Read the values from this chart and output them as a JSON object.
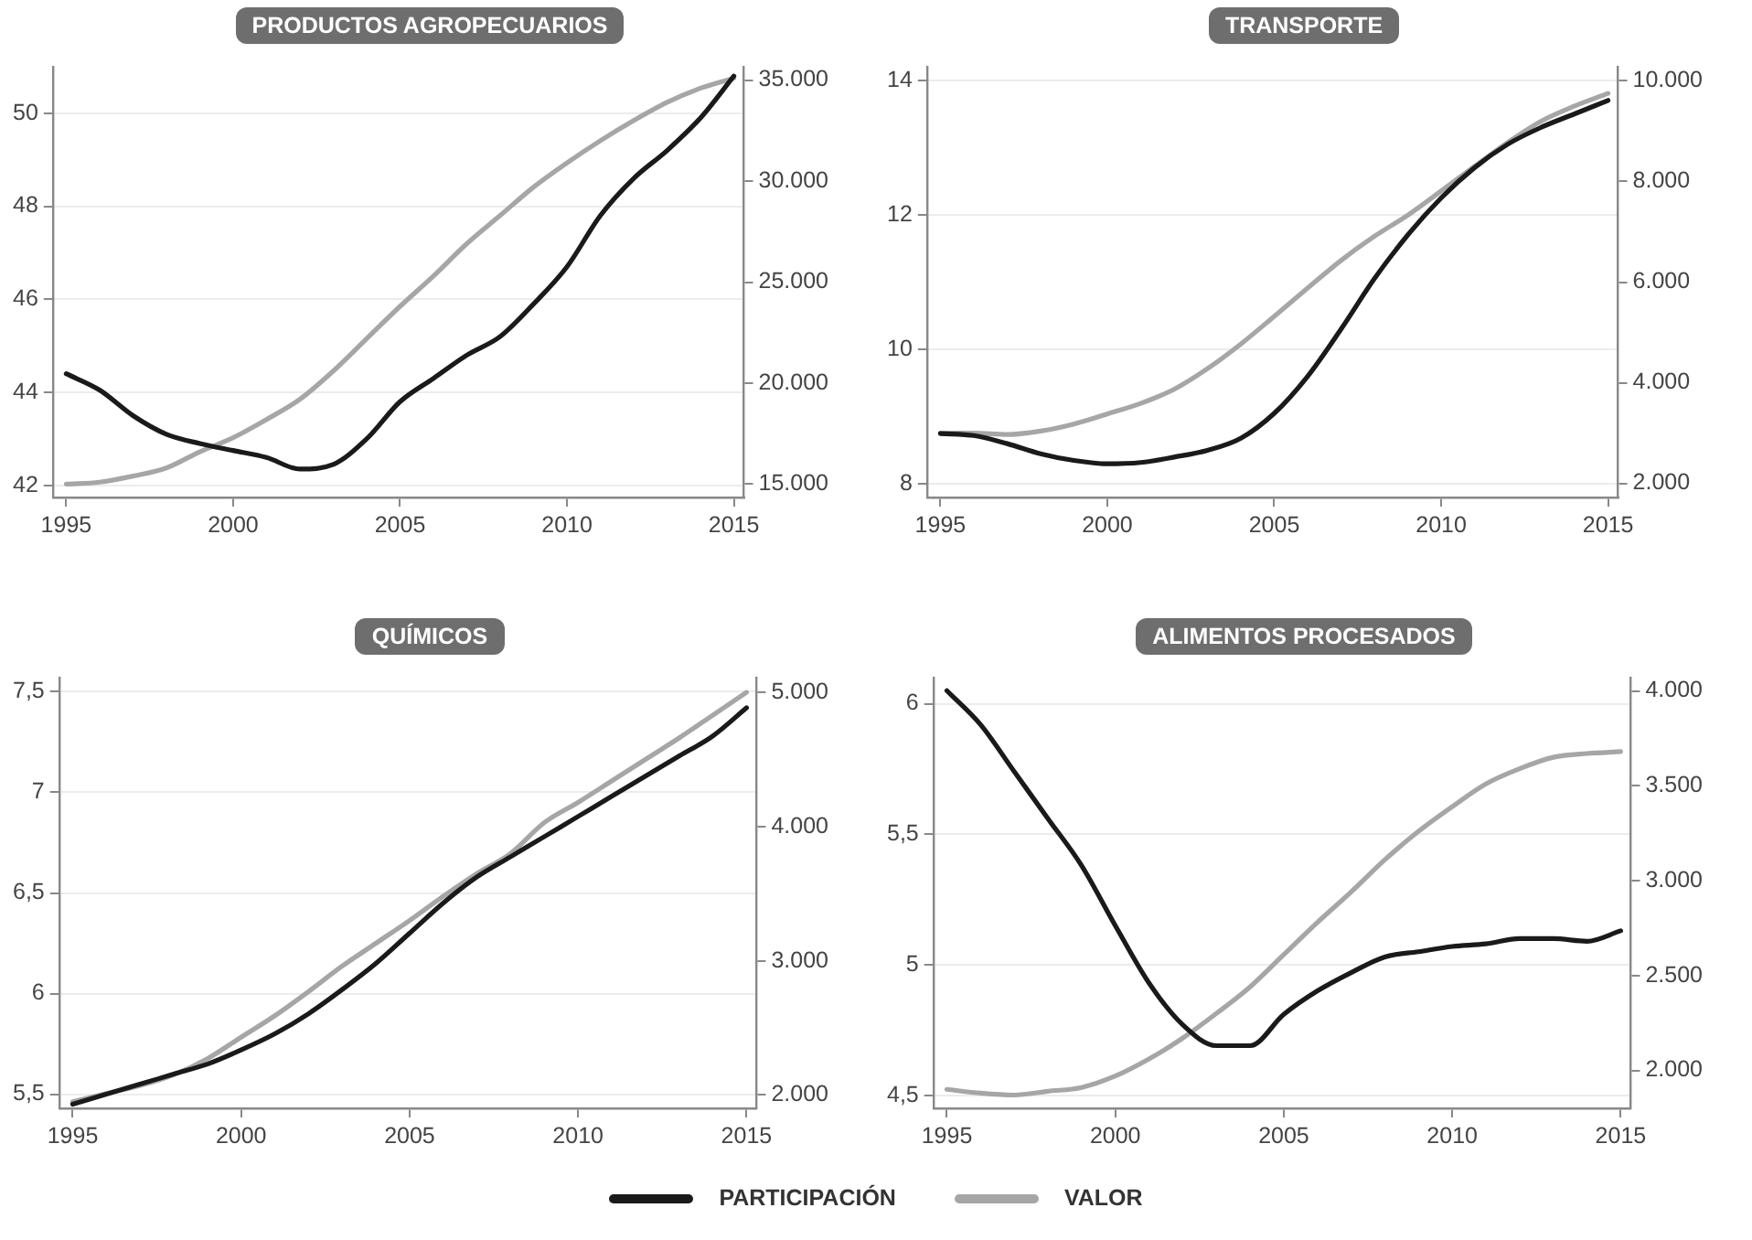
{
  "chart_data": [
    {
      "type": "line",
      "title": "PRODUCTOS AGROPECUARIOS",
      "x": [
        1995,
        1996,
        1997,
        1998,
        1999,
        2000,
        2001,
        2002,
        2003,
        2004,
        2005,
        2006,
        2007,
        2008,
        2009,
        2010,
        2011,
        2012,
        2013,
        2014,
        2015
      ],
      "xlim": [
        1994.6,
        2015.3
      ],
      "xticks": [
        1995,
        2000,
        2005,
        2010,
        2015
      ],
      "ylim": [
        41.74,
        51.0
      ],
      "yticks": [
        42,
        44,
        46,
        48,
        50
      ],
      "y2lim": [
        14340,
        35660
      ],
      "y2ticks": [
        {
          "value": 15000,
          "label": "15.000"
        },
        {
          "value": 20000,
          "label": "20.000"
        },
        {
          "value": 25000,
          "label": "25.000"
        },
        {
          "value": 30000,
          "label": "30.000"
        },
        {
          "value": 35000,
          "label": "35.000"
        }
      ],
      "grid": "y",
      "legend": "bottom",
      "series": [
        {
          "name": "PARTICIPACIÓN",
          "color": "#1a1a1a",
          "values": [
            44.4,
            44.05,
            43.5,
            43.1,
            42.9,
            42.75,
            42.6,
            42.35,
            42.45,
            43.0,
            43.8,
            44.3,
            44.8,
            45.2,
            45.9,
            46.7,
            47.8,
            48.6,
            49.2,
            49.9,
            50.8
          ]
        },
        {
          "name": "VALOR",
          "color": "#a6a6a6",
          "axis": "y2",
          "values": [
            15000,
            15100,
            15400,
            15800,
            16600,
            17300,
            18200,
            19200,
            20600,
            22200,
            23800,
            25300,
            26900,
            28300,
            29700,
            30900,
            32000,
            33000,
            33900,
            34600,
            35100
          ]
        }
      ]
    },
    {
      "type": "line",
      "title": "TRANSPORTE",
      "x": [
        1995,
        1996,
        1997,
        1998,
        1999,
        2000,
        2001,
        2002,
        2003,
        2004,
        2005,
        2006,
        2007,
        2008,
        2009,
        2010,
        2011,
        2012,
        2013,
        2014,
        2015
      ],
      "xlim": [
        1994.6,
        2015.3
      ],
      "xticks": [
        1995,
        2000,
        2005,
        2010,
        2015
      ],
      "ylim": [
        7.8,
        14.2
      ],
      "yticks": [
        8,
        10,
        12,
        14
      ],
      "y2lim": [
        1720,
        10280
      ],
      "y2ticks": [
        {
          "value": 2000,
          "label": "2.000"
        },
        {
          "value": 4000,
          "label": "4.000"
        },
        {
          "value": 6000,
          "label": "6.000"
        },
        {
          "value": 8000,
          "label": "8.000"
        },
        {
          "value": 10000,
          "label": "10.000"
        }
      ],
      "grid": "y",
      "legend": false,
      "series": [
        {
          "color": "#1a1a1a",
          "values": [
            8.75,
            8.72,
            8.6,
            8.45,
            8.35,
            8.3,
            8.32,
            8.4,
            8.5,
            8.68,
            9.05,
            9.6,
            10.3,
            11.05,
            11.7,
            12.25,
            12.7,
            13.05,
            13.3,
            13.5,
            13.7
          ]
        },
        {
          "color": "#a6a6a6",
          "axis": "y2",
          "values": [
            3000,
            3000,
            2970,
            3040,
            3180,
            3380,
            3590,
            3870,
            4280,
            4770,
            5320,
            5880,
            6430,
            6910,
            7330,
            7810,
            8300,
            8780,
            9200,
            9500,
            9750
          ]
        }
      ]
    },
    {
      "type": "line",
      "title": "QUÍMICOS",
      "x": [
        1995,
        1996,
        1997,
        1998,
        1999,
        2000,
        2001,
        2002,
        2003,
        2004,
        2005,
        2006,
        2007,
        2008,
        2009,
        2010,
        2011,
        2012,
        2013,
        2014,
        2015
      ],
      "xlim": [
        1994.6,
        2015.3
      ],
      "xticks": [
        1995,
        2000,
        2005,
        2010,
        2015
      ],
      "ylim": [
        5.43,
        7.57
      ],
      "yticks": [
        {
          "value": 5.5,
          "label": "5,5"
        },
        6,
        {
          "value": 6.5,
          "label": "6,5"
        },
        7,
        {
          "value": 7.5,
          "label": "7,5"
        }
      ],
      "y2lim": [
        1900,
        5110
      ],
      "y2ticks": [
        {
          "value": 2000,
          "label": "2.000"
        },
        {
          "value": 3000,
          "label": "3.000"
        },
        {
          "value": 4000,
          "label": "4.000"
        },
        {
          "value": 5000,
          "label": "5.000"
        }
      ],
      "grid": "y",
      "legend": false,
      "series": [
        {
          "color": "#1a1a1a",
          "values": [
            5.45,
            5.5,
            5.55,
            5.6,
            5.65,
            5.72,
            5.8,
            5.9,
            6.02,
            6.15,
            6.3,
            6.45,
            6.58,
            6.68,
            6.78,
            6.88,
            6.98,
            7.08,
            7.18,
            7.28,
            7.42
          ]
        },
        {
          "color": "#a6a6a6",
          "axis": "y2",
          "values": [
            1950,
            2010,
            2070,
            2150,
            2270,
            2430,
            2590,
            2770,
            2960,
            3130,
            3300,
            3480,
            3650,
            3800,
            4030,
            4180,
            4340,
            4500,
            4660,
            4830,
            5000
          ]
        }
      ]
    },
    {
      "type": "line",
      "title": "ALIMENTOS PROCESADOS",
      "x": [
        1995,
        1996,
        1997,
        1998,
        1999,
        2000,
        2001,
        2002,
        2003,
        2004,
        2005,
        2006,
        2007,
        2008,
        2009,
        2010,
        2011,
        2012,
        2013,
        2014,
        2015
      ],
      "xlim": [
        1994.6,
        2015.3
      ],
      "xticks": [
        1995,
        2000,
        2005,
        2010,
        2015
      ],
      "ylim": [
        4.45,
        6.1
      ],
      "yticks": [
        {
          "value": 4.5,
          "label": "4,5"
        },
        5,
        {
          "value": 5.5,
          "label": "5,5"
        },
        6
      ],
      "y2lim": [
        1800,
        4070
      ],
      "y2ticks": [
        {
          "value": 2000,
          "label": "2.000"
        },
        {
          "value": 2500,
          "label": "2.500"
        },
        {
          "value": 3000,
          "label": "3.000"
        },
        {
          "value": 3500,
          "label": "3.500"
        },
        {
          "value": 4000,
          "label": "4.000"
        }
      ],
      "grid": "y",
      "series": [
        {
          "color": "#1a1a1a",
          "values": [
            6.05,
            5.92,
            5.74,
            5.56,
            5.38,
            5.15,
            4.93,
            4.77,
            4.69,
            4.69,
            4.81,
            4.9,
            4.97,
            5.03,
            5.05,
            5.07,
            5.08,
            5.1,
            5.1,
            5.09,
            5.13
          ]
        },
        {
          "color": "#a6a6a6",
          "axis": "y2",
          "values": [
            1900,
            1880,
            1870,
            1890,
            1910,
            1970,
            2060,
            2170,
            2300,
            2440,
            2610,
            2780,
            2940,
            3110,
            3260,
            3390,
            3510,
            3590,
            3650,
            3670,
            3680
          ]
        }
      ]
    }
  ]
}
